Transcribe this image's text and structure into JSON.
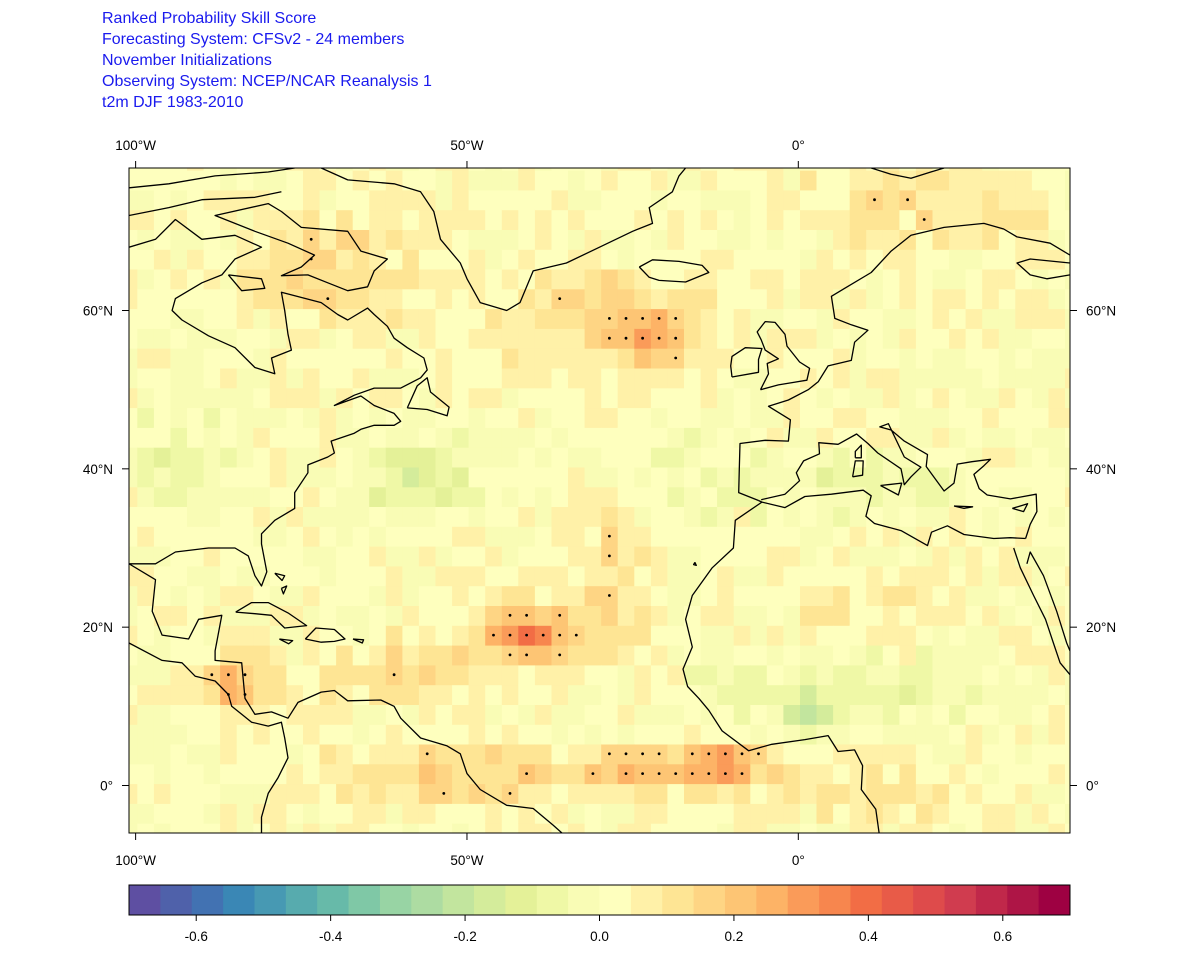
{
  "title_lines": [
    "Ranked Probability Skill Score",
    "Forecasting System: CFSv2 - 24 members",
    "November Initializations",
    "Observing System: NCEP/NCAR Reanalysis 1",
    "t2m DJF 1983-2010"
  ],
  "map": {
    "lon_range": [
      -101,
      41
    ],
    "lat_range": [
      -6,
      78
    ],
    "top_tick_labels": [
      {
        "lon": -100,
        "label": "100°W"
      },
      {
        "lon": -50,
        "label": "50°W"
      },
      {
        "lon": 0,
        "label": "0°"
      }
    ],
    "bottom_tick_labels": [
      {
        "lon": -100,
        "label": "100°W"
      },
      {
        "lon": -50,
        "label": "50°W"
      },
      {
        "lon": 0,
        "label": "0°"
      }
    ],
    "left_tick_labels": [
      {
        "lat": 60,
        "label": "60°N"
      },
      {
        "lat": 40,
        "label": "40°N"
      },
      {
        "lat": 20,
        "label": "20°N"
      },
      {
        "lat": 0,
        "label": "0°"
      }
    ],
    "right_tick_labels": [
      {
        "lat": 60,
        "label": "60°N"
      },
      {
        "lat": 40,
        "label": "40°N"
      },
      {
        "lat": 20,
        "label": "20°N"
      },
      {
        "lat": 0,
        "label": "0°"
      }
    ],
    "grid_resolution_deg": 2.5,
    "significance_marker": "dot"
  },
  "colorbar": {
    "min": -0.7,
    "max": 0.7,
    "step": 0.05,
    "colors": [
      "#5e4fa2",
      "#4f61aa",
      "#4272b2",
      "#3a87b5",
      "#4799b3",
      "#57abae",
      "#67baa9",
      "#7fc8a6",
      "#98d4a4",
      "#addca2",
      "#c2e59e",
      "#d4ec9b",
      "#e4f198",
      "#eff8a6",
      "#f9fcb5",
      "#feffbe",
      "#fff1a8",
      "#fee594",
      "#fed584",
      "#fdc574",
      "#fdb366",
      "#fa9b59",
      "#f7864e",
      "#f26d45",
      "#e85b48",
      "#de4b4b",
      "#d03c4f",
      "#c0284a",
      "#ae1546",
      "#9e0142"
    ],
    "tick_labels": [
      {
        "value": -0.6,
        "label": "-0.6"
      },
      {
        "value": -0.4,
        "label": "-0.4"
      },
      {
        "value": -0.2,
        "label": "-0.2"
      },
      {
        "value": 0.0,
        "label": "0.0"
      },
      {
        "value": 0.2,
        "label": "0.2"
      },
      {
        "value": 0.4,
        "label": "0.4"
      },
      {
        "value": 0.6,
        "label": "0.6"
      }
    ]
  }
}
